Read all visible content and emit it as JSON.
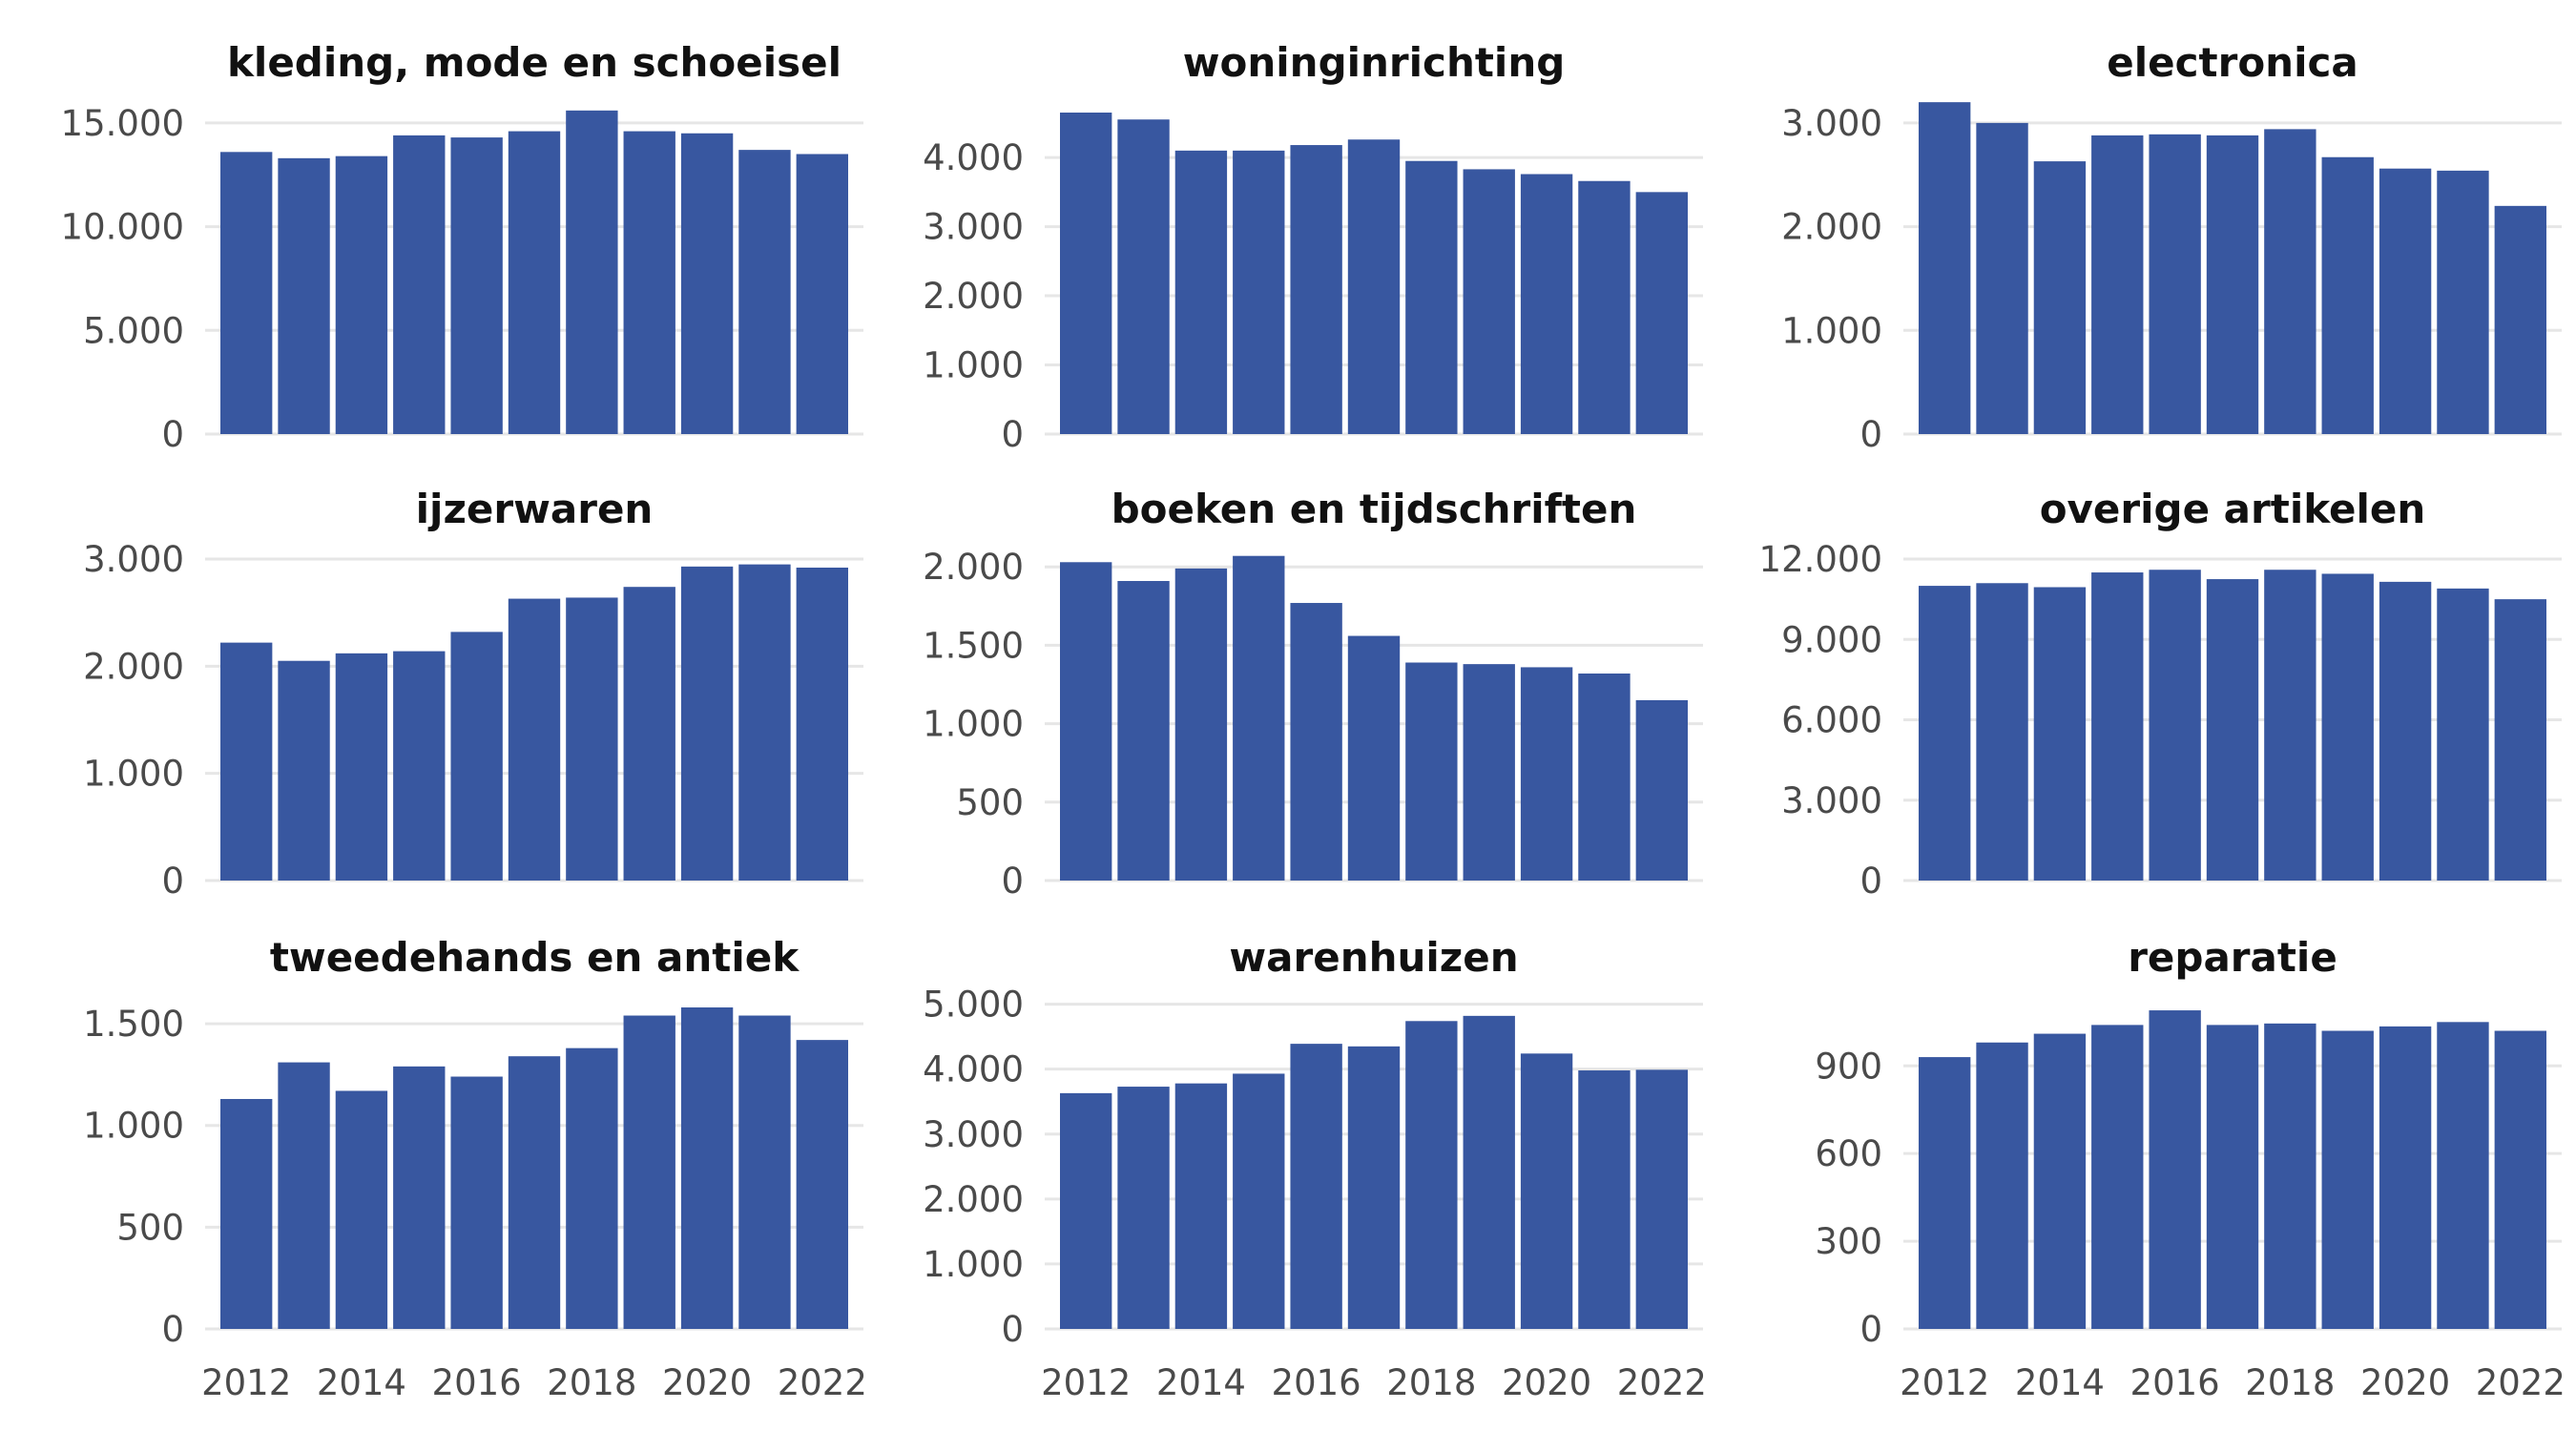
{
  "colors": {
    "bar": "#3857a0",
    "grid": "#e6e6e6",
    "tick_text": "#4a4a4a",
    "title_text": "#111111"
  },
  "chart_data": [
    {
      "type": "bar",
      "title": "kleding, mode en schoeisel",
      "categories": [
        2012,
        2013,
        2014,
        2015,
        2016,
        2017,
        2018,
        2019,
        2020,
        2021,
        2022
      ],
      "values": [
        13600,
        13300,
        13400,
        14400,
        14300,
        14600,
        15600,
        14600,
        14500,
        13700,
        13500
      ],
      "ylim": [
        0,
        15500
      ],
      "yticks": [
        0,
        5000,
        10000,
        15000
      ],
      "ytick_labels": [
        "0",
        "5.000",
        "10.000",
        "15.000"
      ],
      "xticks": [],
      "xtick_labels": [],
      "grid": true
    },
    {
      "type": "bar",
      "title": "woninginrichting",
      "categories": [
        2012,
        2013,
        2014,
        2015,
        2016,
        2017,
        2018,
        2019,
        2020,
        2021,
        2022
      ],
      "values": [
        4650,
        4550,
        4100,
        4100,
        4180,
        4260,
        3950,
        3830,
        3760,
        3660,
        3500
      ],
      "ylim": [
        0,
        4650
      ],
      "yticks": [
        0,
        1000,
        2000,
        3000,
        4000
      ],
      "ytick_labels": [
        "0",
        "1.000",
        "2.000",
        "3.000",
        "4.000"
      ],
      "xticks": [],
      "xtick_labels": [],
      "grid": true
    },
    {
      "type": "bar",
      "title": "electronica",
      "categories": [
        2012,
        2013,
        2014,
        2015,
        2016,
        2017,
        2018,
        2019,
        2020,
        2021,
        2022
      ],
      "values": [
        3200,
        3000,
        2630,
        2880,
        2890,
        2880,
        2940,
        2670,
        2560,
        2540,
        2200
      ],
      "ylim": [
        0,
        3100
      ],
      "yticks": [
        0,
        1000,
        2000,
        3000
      ],
      "ytick_labels": [
        "0",
        "1.000",
        "2.000",
        "3.000"
      ],
      "xticks": [],
      "xtick_labels": [],
      "grid": true
    },
    {
      "type": "bar",
      "title": "ijzerwaren",
      "categories": [
        2012,
        2013,
        2014,
        2015,
        2016,
        2017,
        2018,
        2019,
        2020,
        2021,
        2022
      ],
      "values": [
        2220,
        2050,
        2120,
        2140,
        2320,
        2630,
        2640,
        2740,
        2930,
        2950,
        2920
      ],
      "ylim": [
        0,
        3000
      ],
      "yticks": [
        0,
        1000,
        2000,
        3000
      ],
      "ytick_labels": [
        "0",
        "1.000",
        "2.000",
        "3.000"
      ],
      "xticks": [],
      "xtick_labels": [],
      "grid": true
    },
    {
      "type": "bar",
      "title": "boeken en tijdschriften",
      "categories": [
        2012,
        2013,
        2014,
        2015,
        2016,
        2017,
        2018,
        2019,
        2020,
        2021,
        2022
      ],
      "values": [
        2030,
        1910,
        1990,
        2070,
        1770,
        1560,
        1390,
        1380,
        1360,
        1320,
        1150
      ],
      "ylim": [
        0,
        2050
      ],
      "yticks": [
        0,
        500,
        1000,
        1500,
        2000
      ],
      "ytick_labels": [
        "0",
        "500",
        "1.000",
        "1.500",
        "2.000"
      ],
      "xticks": [],
      "xtick_labels": [],
      "grid": true
    },
    {
      "type": "bar",
      "title": "overige artikelen",
      "categories": [
        2012,
        2013,
        2014,
        2015,
        2016,
        2017,
        2018,
        2019,
        2020,
        2021,
        2022
      ],
      "values": [
        11000,
        11100,
        10950,
        11500,
        11600,
        11250,
        11600,
        11450,
        11150,
        10900,
        10500
      ],
      "ylim": [
        0,
        12000
      ],
      "yticks": [
        0,
        3000,
        6000,
        9000,
        12000
      ],
      "ytick_labels": [
        "0",
        "3.000",
        "6.000",
        "9.000",
        "12.000"
      ],
      "xticks": [],
      "xtick_labels": [],
      "grid": true
    },
    {
      "type": "bar",
      "title": "tweedehands en antiek",
      "categories": [
        2012,
        2013,
        2014,
        2015,
        2016,
        2017,
        2018,
        2019,
        2020,
        2021,
        2022
      ],
      "values": [
        1130,
        1310,
        1170,
        1290,
        1240,
        1340,
        1380,
        1540,
        1580,
        1540,
        1420
      ],
      "ylim": [
        0,
        1580
      ],
      "yticks": [
        0,
        500,
        1000,
        1500
      ],
      "ytick_labels": [
        "0",
        "500",
        "1.000",
        "1.500"
      ],
      "xticks": [
        2012,
        2014,
        2016,
        2018,
        2020,
        2022
      ],
      "xtick_labels": [
        "2012",
        "2014",
        "2016",
        "2018",
        "2020",
        "2022"
      ],
      "grid": true
    },
    {
      "type": "bar",
      "title": "warenhuizen",
      "categories": [
        2012,
        2013,
        2014,
        2015,
        2016,
        2017,
        2018,
        2019,
        2020,
        2021,
        2022
      ],
      "values": [
        3630,
        3730,
        3780,
        3930,
        4390,
        4350,
        4740,
        4820,
        4240,
        3980,
        3990
      ],
      "ylim": [
        0,
        4950
      ],
      "yticks": [
        0,
        1000,
        2000,
        3000,
        4000,
        5000
      ],
      "ytick_labels": [
        "0",
        "1.000",
        "2.000",
        "3.000",
        "4.000",
        "5.000"
      ],
      "xticks": [
        2012,
        2014,
        2016,
        2018,
        2020,
        2022
      ],
      "xtick_labels": [
        "2012",
        "2014",
        "2016",
        "2018",
        "2020",
        "2022"
      ],
      "grid": true
    },
    {
      "type": "bar",
      "title": "reparatie",
      "categories": [
        2012,
        2013,
        2014,
        2015,
        2016,
        2017,
        2018,
        2019,
        2020,
        2021,
        2022
      ],
      "values": [
        930,
        980,
        1010,
        1040,
        1090,
        1040,
        1045,
        1020,
        1035,
        1050,
        1020
      ],
      "ylim": [
        0,
        1100
      ],
      "yticks": [
        0,
        300,
        600,
        900
      ],
      "ytick_labels": [
        "0",
        "300",
        "600",
        "900"
      ],
      "xticks": [
        2012,
        2014,
        2016,
        2018,
        2020,
        2022
      ],
      "xtick_labels": [
        "2012",
        "2014",
        "2016",
        "2018",
        "2020",
        "2022"
      ],
      "grid": true
    }
  ]
}
